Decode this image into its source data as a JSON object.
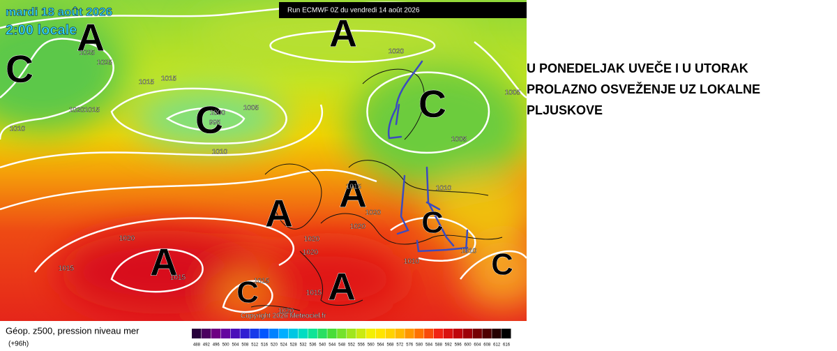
{
  "map": {
    "date": "mardi 18 août 2026",
    "time": "2:00 locale",
    "run": "Run ECMWF 0Z du vendredi 14 août 2026",
    "copyright": "Copyright 2026 Meteociel.fr",
    "centers": [
      "A",
      "A",
      "C",
      "C",
      "C",
      "A",
      "A",
      "C",
      "A",
      "C",
      "A",
      "C"
    ],
    "isobar_labels": [
      1025,
      1025,
      1020,
      1015,
      1015,
      1005,
      1000,
      995,
      1010,
      1020,
      1015,
      1010,
      1005,
      1005,
      1010,
      1015,
      1020,
      1020,
      1020,
      1015,
      1020,
      1020,
      1015,
      1015,
      1010,
      1010,
      1020,
      1015
    ]
  },
  "legend": {
    "title": "Géop. z500, pression niveau mer",
    "lead": "(+96h)",
    "scale": [
      488,
      492,
      496,
      500,
      504,
      508,
      512,
      516,
      520,
      524,
      528,
      532,
      536,
      540,
      544,
      548,
      552,
      556,
      560,
      564,
      568,
      572,
      576,
      580,
      584,
      588,
      592,
      596,
      600,
      604,
      608,
      612,
      616
    ]
  },
  "annotation": [
    "U PONEDELJAK UVEČE I U UTORAK",
    "PROLAZNO OSVEŽENJE UZ LOKALNE",
    "PLJUSKOVE"
  ]
}
